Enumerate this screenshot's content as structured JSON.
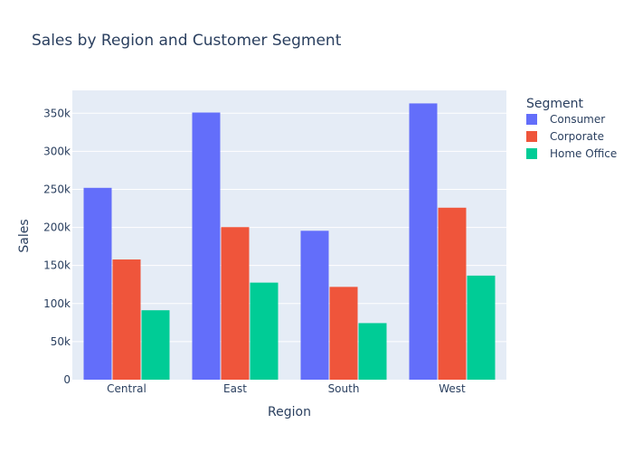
{
  "chart_data": {
    "type": "bar",
    "title": "Sales by Region and Customer Segment",
    "xlabel": "Region",
    "ylabel": "Sales",
    "categories": [
      "Central",
      "East",
      "South",
      "West"
    ],
    "series": [
      {
        "name": "Consumer",
        "values": [
          252000,
          350900,
          195600,
          362900
        ],
        "color": "#636efa"
      },
      {
        "name": "Corporate",
        "values": [
          157900,
          200400,
          121900,
          225900
        ],
        "color": "#ef553b"
      },
      {
        "name": "Home Office",
        "values": [
          91200,
          127500,
          74300,
          136700
        ],
        "color": "#00cc96"
      }
    ],
    "ylim": [
      0,
      380000
    ],
    "yticks": [
      0,
      50000,
      100000,
      150000,
      200000,
      250000,
      300000,
      350000
    ],
    "ytick_labels": [
      "0",
      "50k",
      "100k",
      "150k",
      "200k",
      "250k",
      "300k",
      "350k"
    ],
    "legend_title": "Segment",
    "legend_position": "right",
    "grid": true,
    "plot_bg": "#e5ecf6",
    "grid_color": "#ffffff",
    "text_color": "#2a3f5f"
  }
}
